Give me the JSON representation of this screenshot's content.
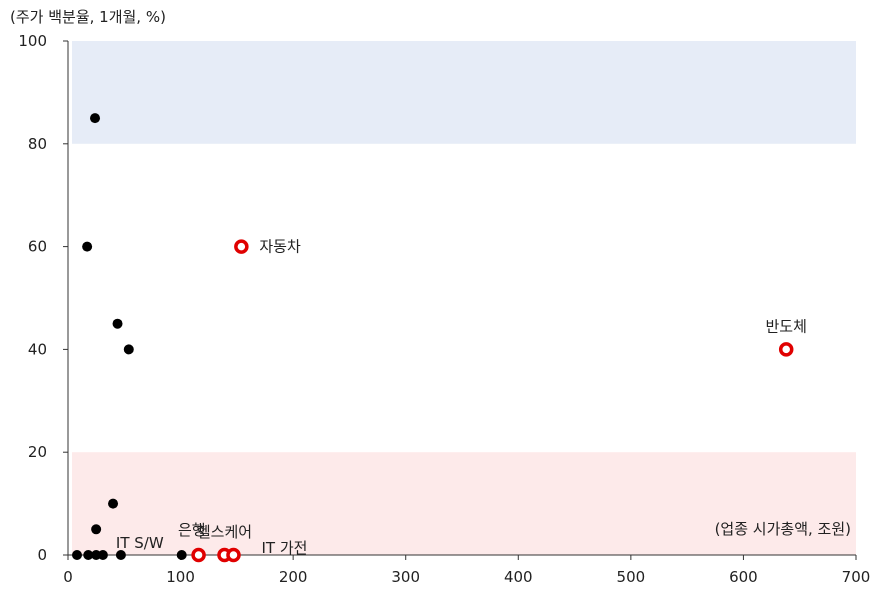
{
  "chart_data": {
    "type": "scatter",
    "title": "",
    "y_unit_label": "(주가 백분율, 1개월, %)",
    "x_unit_label": "(업종 시가총액, 조원)",
    "xlim": [
      0,
      700
    ],
    "ylim": [
      0,
      100
    ],
    "x_ticks": [
      "0",
      "100",
      "200",
      "300",
      "400",
      "500",
      "600",
      "700"
    ],
    "y_ticks": [
      "0",
      "20",
      "40",
      "60",
      "80",
      "100"
    ],
    "bands": [
      {
        "y0": 80,
        "y1": 100,
        "color": "#e6ecf7"
      },
      {
        "y0": 0,
        "y1": 20,
        "color": "#fdeaea"
      }
    ],
    "series": [
      {
        "marker": "filled-circle",
        "color": "#000000",
        "points": [
          {
            "x": 24,
            "y": 85
          },
          {
            "x": 17,
            "y": 60
          },
          {
            "x": 44,
            "y": 45
          },
          {
            "x": 54,
            "y": 40
          },
          {
            "x": 40,
            "y": 10
          },
          {
            "x": 25,
            "y": 5
          },
          {
            "x": 8,
            "y": 0
          },
          {
            "x": 18,
            "y": 0
          },
          {
            "x": 25,
            "y": 0
          },
          {
            "x": 31,
            "y": 0
          },
          {
            "x": 47,
            "y": 0
          },
          {
            "x": 101,
            "y": 0
          }
        ]
      },
      {
        "marker": "hollow-circle",
        "color": "#e00000",
        "points": [
          {
            "x": 154,
            "y": 60
          },
          {
            "x": 638,
            "y": 40
          },
          {
            "x": 116,
            "y": 0
          },
          {
            "x": 139,
            "y": 0
          },
          {
            "x": 147,
            "y": 0
          }
        ]
      }
    ],
    "annotations": [
      {
        "text": "자동차",
        "x": 154,
        "y": 60,
        "anchor": "right"
      },
      {
        "text": "반도체",
        "x": 638,
        "y": 40,
        "anchor": "above"
      },
      {
        "text": "은행",
        "x": 116,
        "y": 0,
        "anchor": "above-left"
      },
      {
        "text": "헬스케어",
        "x": 139,
        "y": 0,
        "anchor": "above"
      },
      {
        "text": "IT S/W",
        "x": 47,
        "y": 0,
        "anchor": "above-right"
      },
      {
        "text": "IT 가전",
        "x": 147,
        "y": 0,
        "anchor": "below-right"
      }
    ]
  }
}
